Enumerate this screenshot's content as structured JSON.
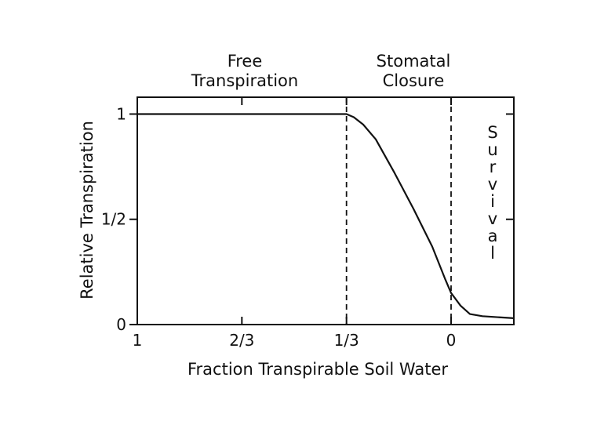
{
  "chart_data": {
    "type": "line",
    "title": "",
    "xlabel": "Fraction Transpirable Soil Water",
    "ylabel": "Relative Transpiration",
    "x_reversed": true,
    "xlim": [
      1.0,
      -0.2
    ],
    "ylim": [
      0,
      1.08
    ],
    "x_ticks": [
      {
        "value": 1.0,
        "label": "1"
      },
      {
        "value": 0.6667,
        "label": "2/3"
      },
      {
        "value": 0.3333,
        "label": "1/3"
      },
      {
        "value": 0.0,
        "label": "0"
      }
    ],
    "y_ticks": [
      {
        "value": 0,
        "label": "0"
      },
      {
        "value": 0.5,
        "label": "1/2"
      },
      {
        "value": 1.0,
        "label": "1"
      }
    ],
    "grid": false,
    "series": [
      {
        "name": "",
        "x": [
          1.0,
          0.3333,
          0.31,
          0.28,
          0.24,
          0.18,
          0.12,
          0.06,
          0.02,
          0.0,
          -0.03,
          -0.06,
          -0.1,
          -0.2
        ],
        "y": [
          1.0,
          1.0,
          0.985,
          0.95,
          0.88,
          0.72,
          0.55,
          0.37,
          0.22,
          0.15,
          0.09,
          0.05,
          0.04,
          0.03
        ]
      }
    ],
    "vlines": [
      {
        "x": 0.3333,
        "style": "dashed"
      },
      {
        "x": 0.0,
        "style": "dashed"
      }
    ],
    "annotations": [
      {
        "name": "free-transpiration",
        "lines": [
          "Free",
          "Transpiration"
        ]
      },
      {
        "name": "stomatal-closure",
        "lines": [
          "Stomatal",
          "Closure"
        ]
      },
      {
        "name": "survival",
        "vertical_text": "Survival"
      }
    ],
    "colors": {
      "line": "#111111",
      "background": "#ffffff"
    }
  }
}
